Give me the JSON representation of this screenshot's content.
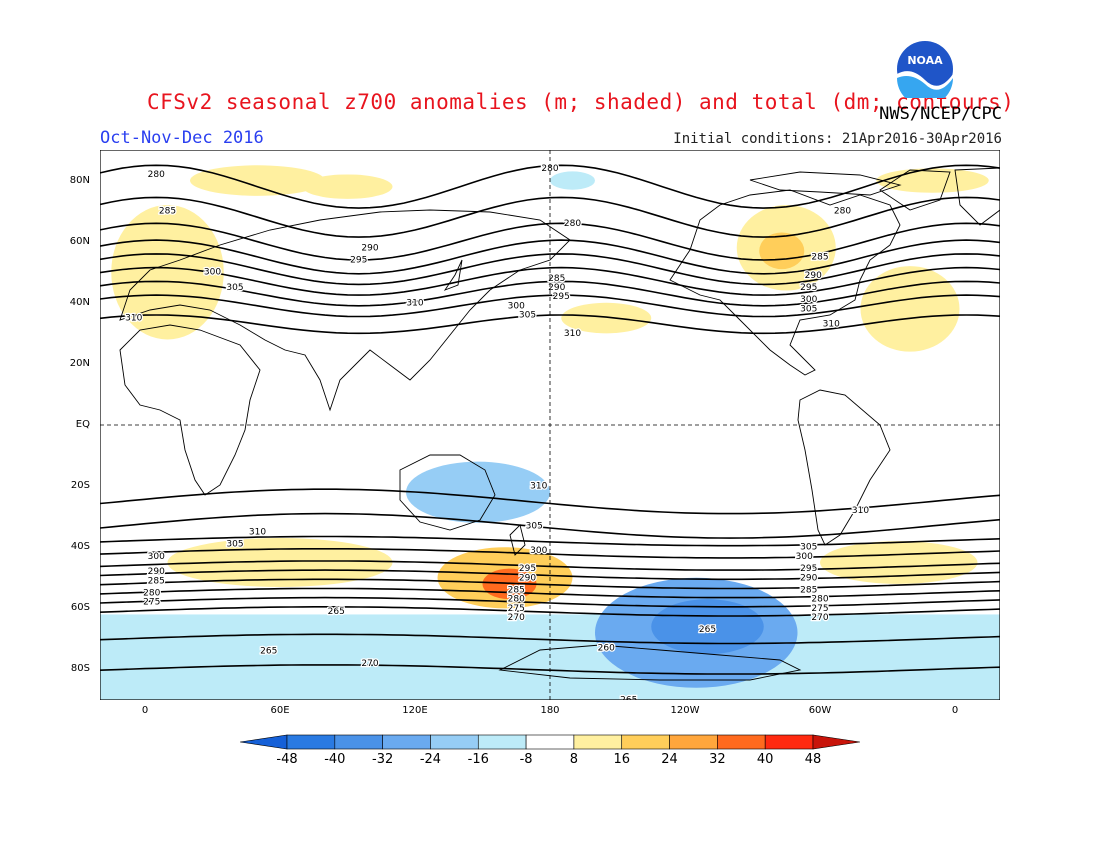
{
  "header": {
    "title": "CFSv2 seasonal z700 anomalies (m; shaded) and total (dm; contours)",
    "credit": "NWS/NCEP/CPC",
    "season": "Oct-Nov-Dec 2016",
    "initial_conditions": "Initial conditions: 21Apr2016-30Apr2016",
    "logo_text": "NOAA"
  },
  "axes": {
    "lat_labels": [
      "80N",
      "60N",
      "40N",
      "20N",
      "EQ",
      "20S",
      "40S",
      "60S",
      "80S"
    ],
    "lat_values": [
      80,
      60,
      40,
      20,
      0,
      -20,
      -40,
      -60,
      -80
    ],
    "lon_labels": [
      "0",
      "60E",
      "120E",
      "180",
      "120W",
      "60W",
      "0"
    ],
    "lon_values": [
      0,
      60,
      120,
      180,
      240,
      300,
      360
    ]
  },
  "map_extent": {
    "lon_min": -20,
    "lon_max": 380,
    "lat_min": -90,
    "lat_max": 90
  },
  "colorbar": {
    "labels": [
      "-48",
      "-40",
      "-32",
      "-24",
      "-16",
      "-8",
      "8",
      "16",
      "24",
      "32",
      "40",
      "48"
    ],
    "colors": [
      "#1560d8",
      "#2a7ae2",
      "#4a92e8",
      "#6aaaf0",
      "#96cdf5",
      "#bdebf8",
      "#ffffff",
      "#fff0a0",
      "#ffce5a",
      "#ffa63c",
      "#ff6a1e",
      "#ff2a10",
      "#c8140a"
    ]
  },
  "anomalies": [
    {
      "lon": 80,
      "lat": 0,
      "rx": 400,
      "ry": 30,
      "level": "neg8",
      "note": "polar band SH",
      "lat_center": -78
    },
    {
      "lon": 10,
      "lat": 50,
      "rx": 25,
      "ry": 22,
      "level": "pos16"
    },
    {
      "lon": 50,
      "lat": 80,
      "rx": 30,
      "ry": 5,
      "level": "pos16"
    },
    {
      "lon": 148,
      "lat": -22,
      "rx": 32,
      "ry": 10,
      "level": "neg16"
    },
    {
      "lon": 160,
      "lat": -50,
      "rx": 30,
      "ry": 10,
      "level": "pos24"
    },
    {
      "lon": 162,
      "lat": -52,
      "rx": 12,
      "ry": 5,
      "level": "pos32"
    },
    {
      "lon": 60,
      "lat": -45,
      "rx": 50,
      "ry": 8,
      "level": "pos16"
    },
    {
      "lon": 245,
      "lat": -68,
      "rx": 45,
      "ry": 18,
      "level": "neg24"
    },
    {
      "lon": 250,
      "lat": -66,
      "rx": 25,
      "ry": 9,
      "level": "neg32"
    },
    {
      "lon": 285,
      "lat": 58,
      "rx": 22,
      "ry": 14,
      "level": "pos16"
    },
    {
      "lon": 283,
      "lat": 57,
      "rx": 10,
      "ry": 6,
      "level": "pos24"
    },
    {
      "lon": 340,
      "lat": 38,
      "rx": 22,
      "ry": 14,
      "level": "pos16"
    },
    {
      "lon": 335,
      "lat": -45,
      "rx": 35,
      "ry": 7,
      "level": "pos16"
    },
    {
      "lon": 205,
      "lat": 35,
      "rx": 20,
      "ry": 5,
      "level": "pos16"
    },
    {
      "lon": 90,
      "lat": 78,
      "rx": 20,
      "ry": 4,
      "level": "pos16"
    },
    {
      "lon": 350,
      "lat": 80,
      "rx": 25,
      "ry": 4,
      "level": "pos16"
    },
    {
      "lon": 190,
      "lat": 80,
      "rx": 10,
      "ry": 3,
      "level": "neg8"
    }
  ],
  "contour_labels": [
    {
      "text": "280",
      "lon": 5,
      "lat": 82
    },
    {
      "text": "285",
      "lon": 10,
      "lat": 70
    },
    {
      "text": "290",
      "lon": 100,
      "lat": 58
    },
    {
      "text": "295",
      "lon": 95,
      "lat": 54
    },
    {
      "text": "300",
      "lon": 30,
      "lat": 50
    },
    {
      "text": "305",
      "lon": 40,
      "lat": 45
    },
    {
      "text": "310",
      "lon": -5,
      "lat": 35
    },
    {
      "text": "310",
      "lon": 120,
      "lat": 40
    },
    {
      "text": "280",
      "lon": 180,
      "lat": 84
    },
    {
      "text": "280",
      "lon": 190,
      "lat": 66
    },
    {
      "text": "285",
      "lon": 183,
      "lat": 48
    },
    {
      "text": "290",
      "lon": 183,
      "lat": 45
    },
    {
      "text": "295",
      "lon": 185,
      "lat": 42
    },
    {
      "text": "300",
      "lon": 165,
      "lat": 39
    },
    {
      "text": "305",
      "lon": 170,
      "lat": 36
    },
    {
      "text": "310",
      "lon": 190,
      "lat": 30
    },
    {
      "text": "280",
      "lon": 310,
      "lat": 70
    },
    {
      "text": "285",
      "lon": 300,
      "lat": 55
    },
    {
      "text": "290",
      "lon": 297,
      "lat": 49
    },
    {
      "text": "295",
      "lon": 295,
      "lat": 45
    },
    {
      "text": "300",
      "lon": 295,
      "lat": 41
    },
    {
      "text": "305",
      "lon": 295,
      "lat": 38
    },
    {
      "text": "310",
      "lon": 305,
      "lat": 33
    },
    {
      "text": "310",
      "lon": 175,
      "lat": -20
    },
    {
      "text": "305",
      "lon": 173,
      "lat": -33
    },
    {
      "text": "300",
      "lon": 175,
      "lat": -41
    },
    {
      "text": "295",
      "lon": 170,
      "lat": -47
    },
    {
      "text": "290",
      "lon": 170,
      "lat": -50
    },
    {
      "text": "285",
      "lon": 165,
      "lat": -54
    },
    {
      "text": "280",
      "lon": 165,
      "lat": -57
    },
    {
      "text": "275",
      "lon": 165,
      "lat": -60
    },
    {
      "text": "270",
      "lon": 165,
      "lat": -63
    },
    {
      "text": "310",
      "lon": 50,
      "lat": -35
    },
    {
      "text": "305",
      "lon": 40,
      "lat": -39
    },
    {
      "text": "300",
      "lon": 5,
      "lat": -43
    },
    {
      "text": "290",
      "lon": 5,
      "lat": -48
    },
    {
      "text": "285",
      "lon": 5,
      "lat": -51
    },
    {
      "text": "280",
      "lon": 3,
      "lat": -55
    },
    {
      "text": "275",
      "lon": 3,
      "lat": -58
    },
    {
      "text": "265",
      "lon": 85,
      "lat": -61
    },
    {
      "text": "265",
      "lon": 55,
      "lat": -74
    },
    {
      "text": "270",
      "lon": 100,
      "lat": -78
    },
    {
      "text": "260",
      "lon": 205,
      "lat": -73
    },
    {
      "text": "265",
      "lon": 250,
      "lat": -67
    },
    {
      "text": "265",
      "lon": 215,
      "lat": -90
    },
    {
      "text": "310",
      "lon": 318,
      "lat": -28
    },
    {
      "text": "305",
      "lon": 295,
      "lat": -40
    },
    {
      "text": "300",
      "lon": 293,
      "lat": -43
    },
    {
      "text": "295",
      "lon": 295,
      "lat": -47
    },
    {
      "text": "290",
      "lon": 295,
      "lat": -50
    },
    {
      "text": "285",
      "lon": 295,
      "lat": -54
    },
    {
      "text": "280",
      "lon": 300,
      "lat": -57
    },
    {
      "text": "275",
      "lon": 300,
      "lat": -60
    },
    {
      "text": "270",
      "lon": 300,
      "lat": -63
    }
  ]
}
